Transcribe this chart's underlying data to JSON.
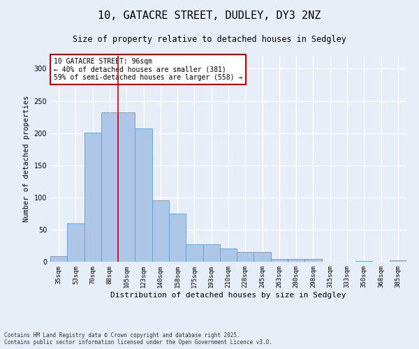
{
  "title": "10, GATACRE STREET, DUDLEY, DY3 2NZ",
  "subtitle": "Size of property relative to detached houses in Sedgley",
  "xlabel": "Distribution of detached houses by size in Sedgley",
  "ylabel": "Number of detached properties",
  "categories": [
    "35sqm",
    "53sqm",
    "70sqm",
    "88sqm",
    "105sqm",
    "123sqm",
    "140sqm",
    "158sqm",
    "175sqm",
    "193sqm",
    "210sqm",
    "228sqm",
    "245sqm",
    "263sqm",
    "280sqm",
    "298sqm",
    "315sqm",
    "333sqm",
    "350sqm",
    "368sqm",
    "385sqm"
  ],
  "values": [
    9,
    60,
    201,
    232,
    232,
    207,
    95,
    75,
    27,
    27,
    21,
    15,
    15,
    4,
    4,
    4,
    0,
    0,
    1,
    0,
    2
  ],
  "bar_color": "#aec6e8",
  "bar_edge_color": "#5a9fd4",
  "vline_x_index": 3.5,
  "vline_color": "#cc0000",
  "annotation_box_text": "10 GATACRE STREET: 96sqm\n← 40% of detached houses are smaller (381)\n59% of semi-detached houses are larger (558) →",
  "annotation_box_color": "#cc0000",
  "annotation_box_bg": "#ffffff",
  "background_color": "#e8eef7",
  "grid_color": "#ffffff",
  "footer_text": "Contains HM Land Registry data © Crown copyright and database right 2025.\nContains public sector information licensed under the Open Government Licence v3.0.",
  "ylim": [
    0,
    320
  ],
  "yticks": [
    0,
    50,
    100,
    150,
    200,
    250,
    300
  ],
  "title_fontsize": 11,
  "subtitle_fontsize": 8.5,
  "ylabel_fontsize": 7.5,
  "xlabel_fontsize": 8,
  "tick_fontsize": 6.5,
  "annot_fontsize": 7,
  "footer_fontsize": 5.5
}
